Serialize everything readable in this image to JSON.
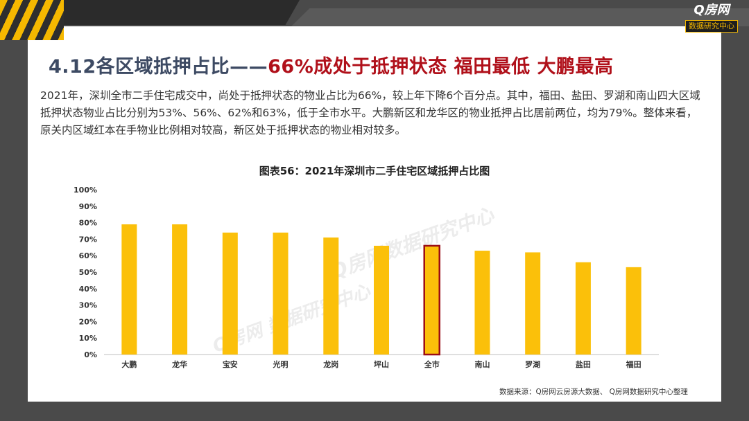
{
  "logo": {
    "main": "Q房网",
    "sub": "数据研究中心"
  },
  "headline": {
    "part1": "4.12各区域抵押占比——",
    "part2": "66%成处于抵押状态  福田最低  大鹏最高"
  },
  "description": "2021年，深圳全市二手住宅成交中，尚处于抵押状态的物业占比为66%，较上年下降6个百分点。其中，福田、盐田、罗湖和南山四大区域抵押状态物业占比分别为53%、56%、62%和63%，低于全市水平。大鹏新区和龙华区的物业抵押占比居前两位，均为79%。整体来看，原关内区域红本在手物业比例相对较高，新区处于抵押状态的物业相对较多。",
  "watermark": {
    "text1": "Q房网 数据研究中心",
    "text2": "Q房网数据研究中心"
  },
  "source": "数据来源：Q房网云房源大数据、 Q房网数据研究中心整理",
  "chart_data": {
    "type": "bar",
    "title": "图表56：2021年深圳市二手住宅区域抵押占比图",
    "categories": [
      "大鹏",
      "龙华",
      "宝安",
      "光明",
      "龙岗",
      "坪山",
      "全市",
      "南山",
      "罗湖",
      "盐田",
      "福田"
    ],
    "values": [
      79,
      79,
      74,
      74,
      71,
      66,
      66,
      63,
      62,
      56,
      53
    ],
    "highlight_category": "全市",
    "ylim": [
      0,
      100
    ],
    "yticks": [
      "0%",
      "10%",
      "20%",
      "30%",
      "40%",
      "50%",
      "60%",
      "70%",
      "80%",
      "90%",
      "100%"
    ],
    "grid": false,
    "colors": {
      "bar": "#fbc00a",
      "highlight_bar": "#fbc00a",
      "highlight_border": "#9b0d15"
    }
  }
}
